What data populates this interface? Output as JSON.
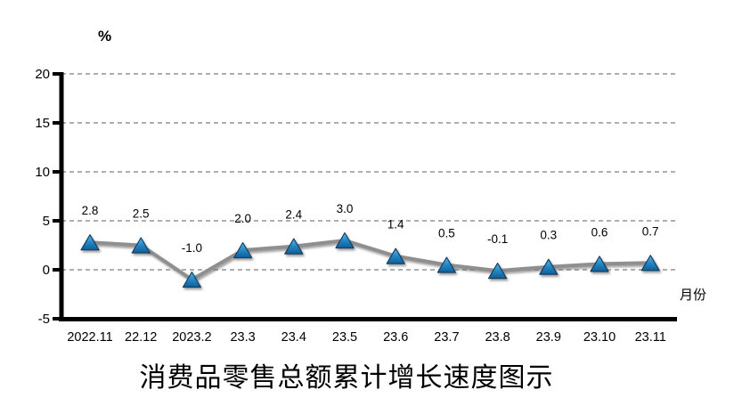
{
  "chart": {
    "y_axis_unit_label": "%",
    "x_axis_label": "月份",
    "title": "消费品零售总额累计增长速度图示"
  },
  "chart_data": {
    "type": "line",
    "title": "消费品零售总额累计增长速度图示",
    "ylabel": "%",
    "xlabel": "月份",
    "categories": [
      "2022.11",
      "22.12",
      "2023.2",
      "23.3",
      "23.4",
      "23.5",
      "23.6",
      "23.7",
      "23.8",
      "23.9",
      "23.10",
      "23.11"
    ],
    "values": [
      2.8,
      2.5,
      -1.0,
      2.0,
      2.4,
      3.0,
      1.4,
      0.5,
      -0.1,
      0.3,
      0.6,
      0.7
    ],
    "data_labels": [
      "2.8",
      "2.5",
      "-1.0",
      "2.0",
      "2.4",
      "3.0",
      "1.4",
      "0.5",
      "-0.1",
      "0.3",
      "0.6",
      "0.7"
    ],
    "ylim": [
      -5,
      20
    ],
    "yticks": [
      -5,
      0,
      5,
      10,
      15,
      20
    ],
    "grid": true,
    "gridline_values": [
      0,
      5,
      10,
      15,
      20
    ],
    "legend": "none",
    "marker": "triangle",
    "colors": {
      "line": "#8f8f8f",
      "marker_fill_top": "#5fb6e6",
      "marker_fill_mid": "#2387c4",
      "marker_fill_bottom": "#0f5e97",
      "marker_stroke": "#123f63",
      "grid": "#7d7d7d",
      "axis": "#000000"
    }
  }
}
